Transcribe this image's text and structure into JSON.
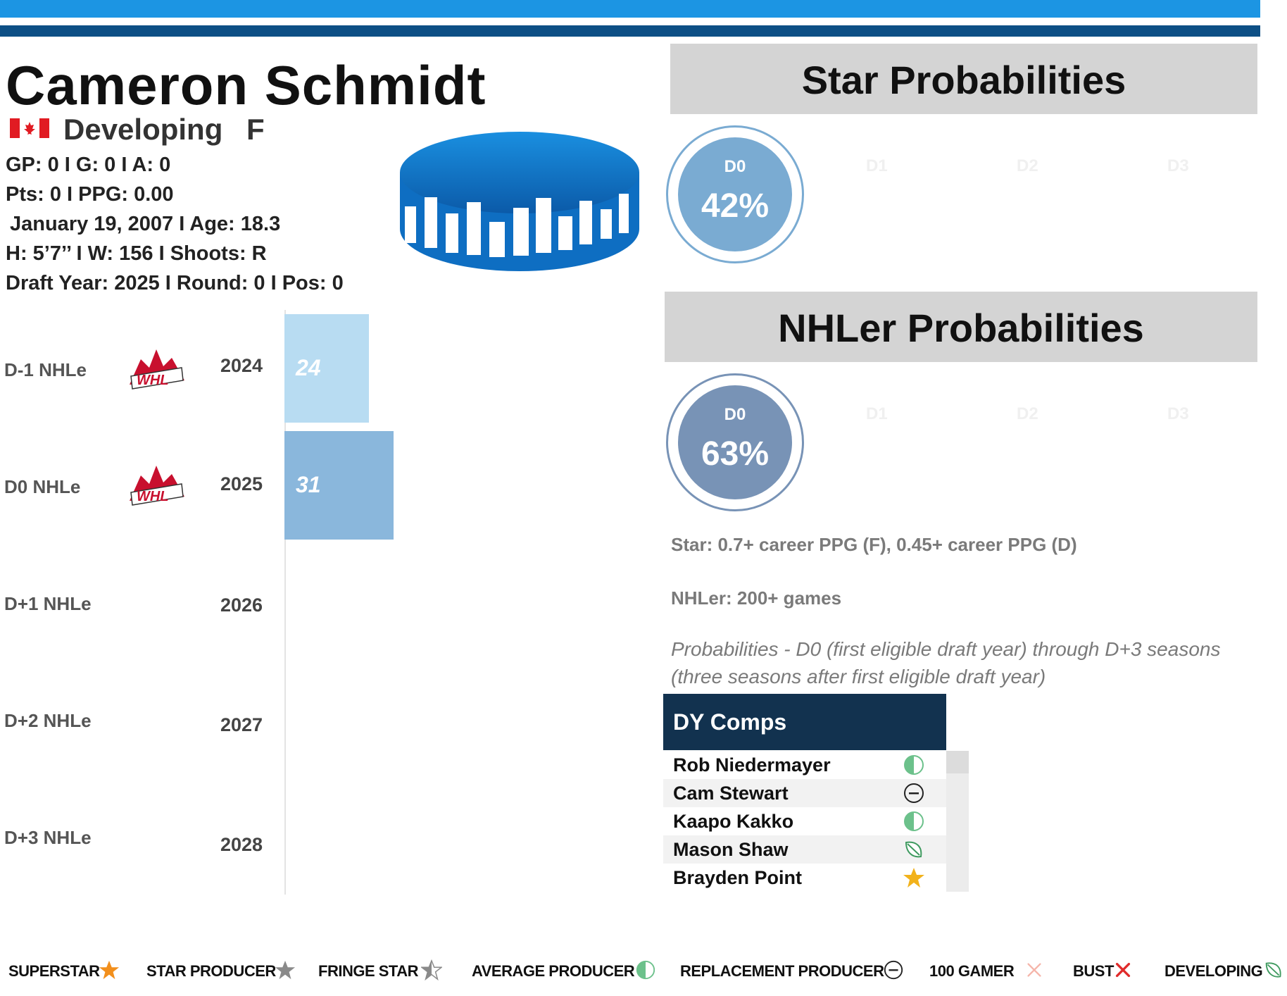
{
  "player": {
    "name": "Cameron Schmidt",
    "status": "Developing",
    "position": "F",
    "stats_line1": "GP: 0 I G: 0 I A: 0",
    "stats_line2": "Pts: 0 I PPG: 0.00",
    "birth_line": "January 19, 2007 I Age: 18.3",
    "size_line": "H: 5’7’’ I W: 156 I Shoots: R",
    "draft_line": "Draft Year: 2025 I Round: 0 I Pos: 0"
  },
  "nhle_rows": [
    {
      "label": "D-1 NHLe",
      "year": "2024",
      "value": 24,
      "color": "#b8dcf2",
      "league": "WHL"
    },
    {
      "label": "D0 NHLe",
      "year": "2025",
      "value": 31,
      "color": "#8ab7dc",
      "league": "WHL"
    },
    {
      "label": "D+1 NHLe",
      "year": "2026"
    },
    {
      "label": "D+2 NHLe",
      "year": "2027"
    },
    {
      "label": "D+3 NHLe",
      "year": "2028"
    }
  ],
  "star": {
    "title": "Star Probabilities",
    "main_label": "D0",
    "main_value": "42%",
    "color": "#7aabd2",
    "other_labels": [
      "D1",
      "D2",
      "D3"
    ]
  },
  "nhler": {
    "title": "NHLer Probabilities",
    "main_label": "D0",
    "main_value": "63%",
    "color": "#7893b6",
    "other_labels": [
      "D1",
      "D2",
      "D3"
    ]
  },
  "notes": {
    "star_def": "Star: 0.7+ career PPG (F), 0.45+ career PPG (D)",
    "nhler_def": "NHLer: 200+ games",
    "probabilities": "Probabilities - D0 (first eligible draft year) through D+3 seasons (three seasons after first eligible draft year)"
  },
  "comps": {
    "title": "DY Comps",
    "items": [
      {
        "name": "Rob Niedermayer",
        "icon": "average-producer-icon"
      },
      {
        "name": "Cam Stewart",
        "icon": "replacement-producer-icon"
      },
      {
        "name": "Kaapo Kakko",
        "icon": "average-producer-icon"
      },
      {
        "name": "Mason Shaw",
        "icon": "developing-icon"
      },
      {
        "name": "Brayden Point",
        "icon": "superstar-icon"
      }
    ]
  },
  "legend": [
    {
      "label": "SUPERSTAR",
      "icon": "superstar-icon"
    },
    {
      "label": "STAR PRODUCER",
      "icon": "star-producer-icon"
    },
    {
      "label": "FRINGE STAR",
      "icon": "fringe-star-icon"
    },
    {
      "label": "AVERAGE PRODUCER",
      "icon": "average-producer-icon"
    },
    {
      "label": "REPLACEMENT PRODUCER",
      "icon": "replacement-producer-icon"
    },
    {
      "label": "100 GAMER",
      "icon": "hundred-gamer-icon"
    },
    {
      "label": "BUST",
      "icon": "bust-icon"
    },
    {
      "label": "DEVELOPING",
      "icon": "developing-icon"
    }
  ]
}
